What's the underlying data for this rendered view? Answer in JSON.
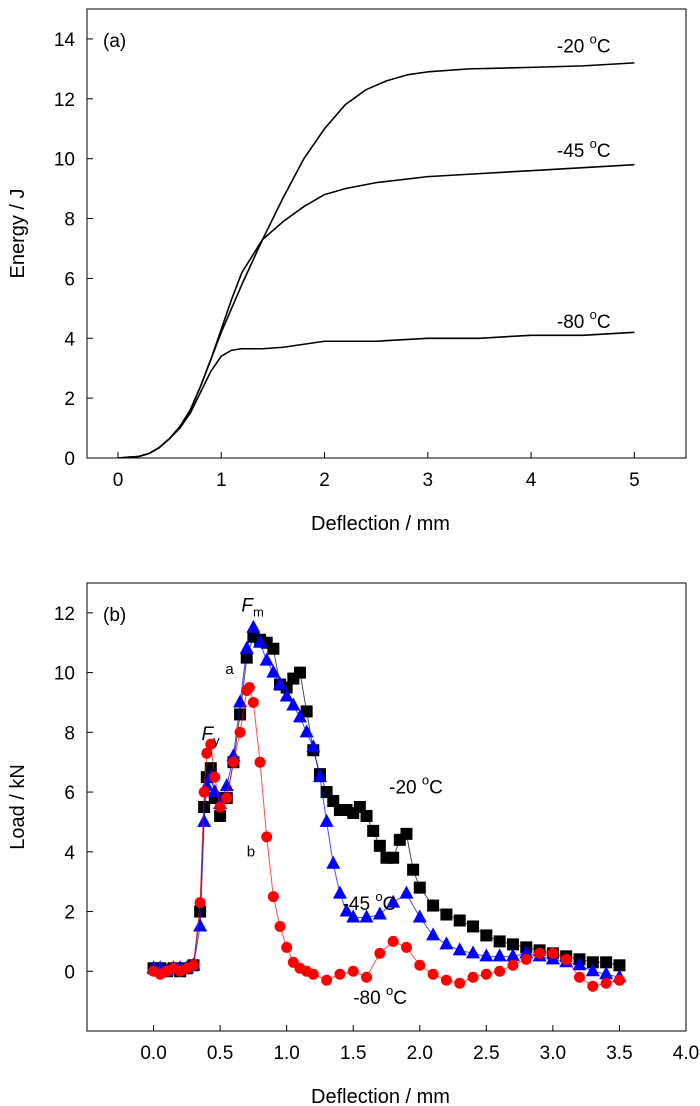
{
  "chart_data": [
    {
      "type": "line",
      "panel_label": "(a)",
      "xlabel": "Deflection / mm",
      "ylabel": "Energy / J",
      "xlim": [
        -0.3,
        5.5
      ],
      "ylim": [
        0,
        15
      ],
      "xticks": [
        0,
        1,
        2,
        3,
        4,
        5
      ],
      "xtick_labels": [
        "0",
        "1",
        "2",
        "3",
        "4",
        "5"
      ],
      "yticks": [
        0,
        2,
        4,
        6,
        8,
        10,
        12,
        14
      ],
      "ytick_labels": [
        "0",
        "2",
        "4",
        "6",
        "8",
        "10",
        "12",
        "14"
      ],
      "grid": false,
      "legend": "none",
      "series": [
        {
          "name": "-20 °C",
          "color": "#000000",
          "x": [
            0,
            0.2,
            0.3,
            0.4,
            0.5,
            0.6,
            0.7,
            0.8,
            0.9,
            1.0,
            1.2,
            1.4,
            1.6,
            1.8,
            2.0,
            2.2,
            2.4,
            2.6,
            2.8,
            3.0,
            3.4,
            4.0,
            4.5,
            5.0
          ],
          "y": [
            0,
            0.05,
            0.15,
            0.35,
            0.65,
            1.05,
            1.6,
            2.4,
            3.3,
            4.2,
            5.8,
            7.3,
            8.7,
            10.0,
            11.0,
            11.8,
            12.3,
            12.6,
            12.8,
            12.9,
            13.0,
            13.05,
            13.1,
            13.2
          ]
        },
        {
          "name": "-45 °C",
          "color": "#000000",
          "x": [
            0,
            0.2,
            0.3,
            0.4,
            0.5,
            0.6,
            0.7,
            0.8,
            0.9,
            1.0,
            1.1,
            1.2,
            1.4,
            1.6,
            1.8,
            2.0,
            2.2,
            2.5,
            3.0,
            3.5,
            4.0,
            4.5,
            5.0
          ],
          "y": [
            0,
            0.05,
            0.15,
            0.35,
            0.65,
            1.05,
            1.6,
            2.4,
            3.3,
            4.3,
            5.3,
            6.2,
            7.3,
            7.9,
            8.4,
            8.8,
            9.0,
            9.2,
            9.4,
            9.5,
            9.6,
            9.7,
            9.8
          ]
        },
        {
          "name": "-80 °C",
          "color": "#000000",
          "x": [
            0,
            0.2,
            0.3,
            0.4,
            0.5,
            0.6,
            0.7,
            0.8,
            0.9,
            1.0,
            1.1,
            1.2,
            1.4,
            1.6,
            1.8,
            2.0,
            2.5,
            3.0,
            3.5,
            4.0,
            4.5,
            5.0
          ],
          "y": [
            0,
            0.05,
            0.15,
            0.35,
            0.65,
            1.0,
            1.5,
            2.2,
            2.9,
            3.4,
            3.6,
            3.65,
            3.65,
            3.7,
            3.8,
            3.9,
            3.9,
            4.0,
            4.0,
            4.1,
            4.1,
            4.2
          ]
        }
      ],
      "annotations": [
        {
          "base": "-20 ",
          "sup": "o",
          "tail": "C",
          "at": [
            4.25,
            13.55
          ]
        },
        {
          "base": "-45 ",
          "sup": "o",
          "tail": "C",
          "at": [
            4.25,
            10.05
          ]
        },
        {
          "base": "-80 ",
          "sup": "o",
          "tail": "C",
          "at": [
            4.25,
            4.35
          ]
        }
      ]
    },
    {
      "type": "scatter",
      "panel_label": "(b)",
      "xlabel": "Deflection / mm",
      "ylabel": "Load / kN",
      "xlim": [
        -0.5,
        4.0
      ],
      "ylim": [
        -2,
        13
      ],
      "xticks": [
        0.0,
        0.5,
        1.0,
        1.5,
        2.0,
        2.5,
        3.0,
        3.5,
        4.0
      ],
      "xtick_labels": [
        "0.0",
        "0.5",
        "1.0",
        "1.5",
        "2.0",
        "2.5",
        "3.0",
        "3.5",
        "4.0"
      ],
      "yticks": [
        0,
        2,
        4,
        6,
        8,
        10,
        12
      ],
      "ytick_labels": [
        "0",
        "2",
        "4",
        "6",
        "8",
        "10",
        "12"
      ],
      "grid": false,
      "legend": "none",
      "series": [
        {
          "name": "-20 °C",
          "marker": "square",
          "color": "#000000",
          "x": [
            0.0,
            0.05,
            0.1,
            0.15,
            0.2,
            0.25,
            0.3,
            0.35,
            0.38,
            0.4,
            0.43,
            0.46,
            0.5,
            0.55,
            0.6,
            0.65,
            0.7,
            0.75,
            0.8,
            0.85,
            0.9,
            0.95,
            1.0,
            1.05,
            1.1,
            1.15,
            1.2,
            1.25,
            1.3,
            1.35,
            1.4,
            1.45,
            1.5,
            1.55,
            1.6,
            1.65,
            1.7,
            1.75,
            1.8,
            1.85,
            1.9,
            1.95,
            2.0,
            2.1,
            2.2,
            2.3,
            2.4,
            2.5,
            2.6,
            2.7,
            2.8,
            2.9,
            3.0,
            3.1,
            3.2,
            3.3,
            3.4,
            3.5
          ],
          "y": [
            0.1,
            0.1,
            0.0,
            0.1,
            0.0,
            0.1,
            0.2,
            2.0,
            5.5,
            6.5,
            6.8,
            5.8,
            5.2,
            5.8,
            7.0,
            8.6,
            10.5,
            11.2,
            11.1,
            11.0,
            10.8,
            9.6,
            9.5,
            9.8,
            10.0,
            8.7,
            7.4,
            6.6,
            6.0,
            5.7,
            5.4,
            5.4,
            5.3,
            5.5,
            5.2,
            4.7,
            4.2,
            3.8,
            3.8,
            4.4,
            4.6,
            3.4,
            2.8,
            2.2,
            1.9,
            1.7,
            1.5,
            1.2,
            1.0,
            0.9,
            0.8,
            0.7,
            0.6,
            0.5,
            0.4,
            0.3,
            0.3,
            0.2
          ]
        },
        {
          "name": "-45 °C",
          "marker": "triangle",
          "color": "#0000ff",
          "x": [
            0.0,
            0.05,
            0.1,
            0.15,
            0.2,
            0.25,
            0.3,
            0.35,
            0.38,
            0.4,
            0.43,
            0.46,
            0.5,
            0.55,
            0.6,
            0.65,
            0.7,
            0.75,
            0.8,
            0.85,
            0.9,
            0.95,
            1.0,
            1.05,
            1.1,
            1.15,
            1.2,
            1.25,
            1.3,
            1.35,
            1.4,
            1.45,
            1.5,
            1.6,
            1.7,
            1.8,
            1.9,
            2.0,
            2.1,
            2.2,
            2.3,
            2.4,
            2.5,
            2.6,
            2.7,
            2.8,
            2.9,
            3.0,
            3.1,
            3.2,
            3.3,
            3.4,
            3.5
          ],
          "y": [
            0.1,
            0.1,
            0.0,
            0.1,
            0.1,
            0.1,
            0.2,
            1.5,
            5.0,
            6.2,
            6.5,
            6.0,
            5.6,
            6.2,
            7.2,
            9.0,
            10.8,
            11.5,
            11.0,
            10.4,
            10.0,
            9.6,
            9.2,
            8.9,
            8.5,
            8.0,
            7.5,
            6.5,
            5.0,
            3.6,
            2.6,
            2.0,
            1.8,
            1.8,
            1.9,
            2.3,
            2.6,
            1.8,
            1.2,
            0.9,
            0.7,
            0.6,
            0.5,
            0.5,
            0.5,
            0.6,
            0.5,
            0.4,
            0.3,
            0.2,
            0.0,
            -0.1,
            -0.2
          ]
        },
        {
          "name": "-80 °C",
          "marker": "circle",
          "color": "#ff0000",
          "x": [
            0.0,
            0.05,
            0.1,
            0.15,
            0.2,
            0.25,
            0.3,
            0.35,
            0.38,
            0.4,
            0.43,
            0.46,
            0.5,
            0.55,
            0.6,
            0.65,
            0.7,
            0.72,
            0.75,
            0.8,
            0.85,
            0.9,
            0.95,
            1.0,
            1.05,
            1.1,
            1.15,
            1.2,
            1.3,
            1.4,
            1.5,
            1.6,
            1.7,
            1.8,
            1.9,
            2.0,
            2.1,
            2.2,
            2.3,
            2.4,
            2.5,
            2.6,
            2.7,
            2.8,
            2.9,
            3.0,
            3.1,
            3.2,
            3.3,
            3.4,
            3.5
          ],
          "y": [
            0.0,
            -0.1,
            0.0,
            0.1,
            0.0,
            0.1,
            0.2,
            2.3,
            6.0,
            7.3,
            7.6,
            6.5,
            5.5,
            5.8,
            7.0,
            8.0,
            9.4,
            9.5,
            9.0,
            7.0,
            4.5,
            2.5,
            1.5,
            0.8,
            0.3,
            0.1,
            0.0,
            -0.1,
            -0.3,
            -0.1,
            0.0,
            -0.2,
            0.6,
            1.0,
            0.8,
            0.2,
            -0.1,
            -0.3,
            -0.4,
            -0.2,
            -0.1,
            0.0,
            0.2,
            0.4,
            0.6,
            0.6,
            0.4,
            -0.2,
            -0.5,
            -0.4,
            -0.3
          ]
        }
      ],
      "annotations": [
        {
          "base": "-20 ",
          "sup": "o",
          "tail": "C",
          "at": [
            1.77,
            5.95
          ]
        },
        {
          "base": "-45 ",
          "sup": "o",
          "tail": "C",
          "at": [
            1.42,
            2.05
          ]
        },
        {
          "base": "-80 ",
          "sup": "o",
          "tail": "C",
          "at": [
            1.5,
            -1.1
          ]
        },
        {
          "text": "a",
          "at": [
            0.54,
            9.95
          ]
        },
        {
          "text": "b",
          "at": [
            0.7,
            3.85
          ]
        },
        {
          "text": "F",
          "sub": "y",
          "at": [
            0.36,
            7.75
          ]
        },
        {
          "text": "F",
          "sub": "m",
          "at": [
            0.66,
            12.05
          ]
        }
      ]
    }
  ]
}
